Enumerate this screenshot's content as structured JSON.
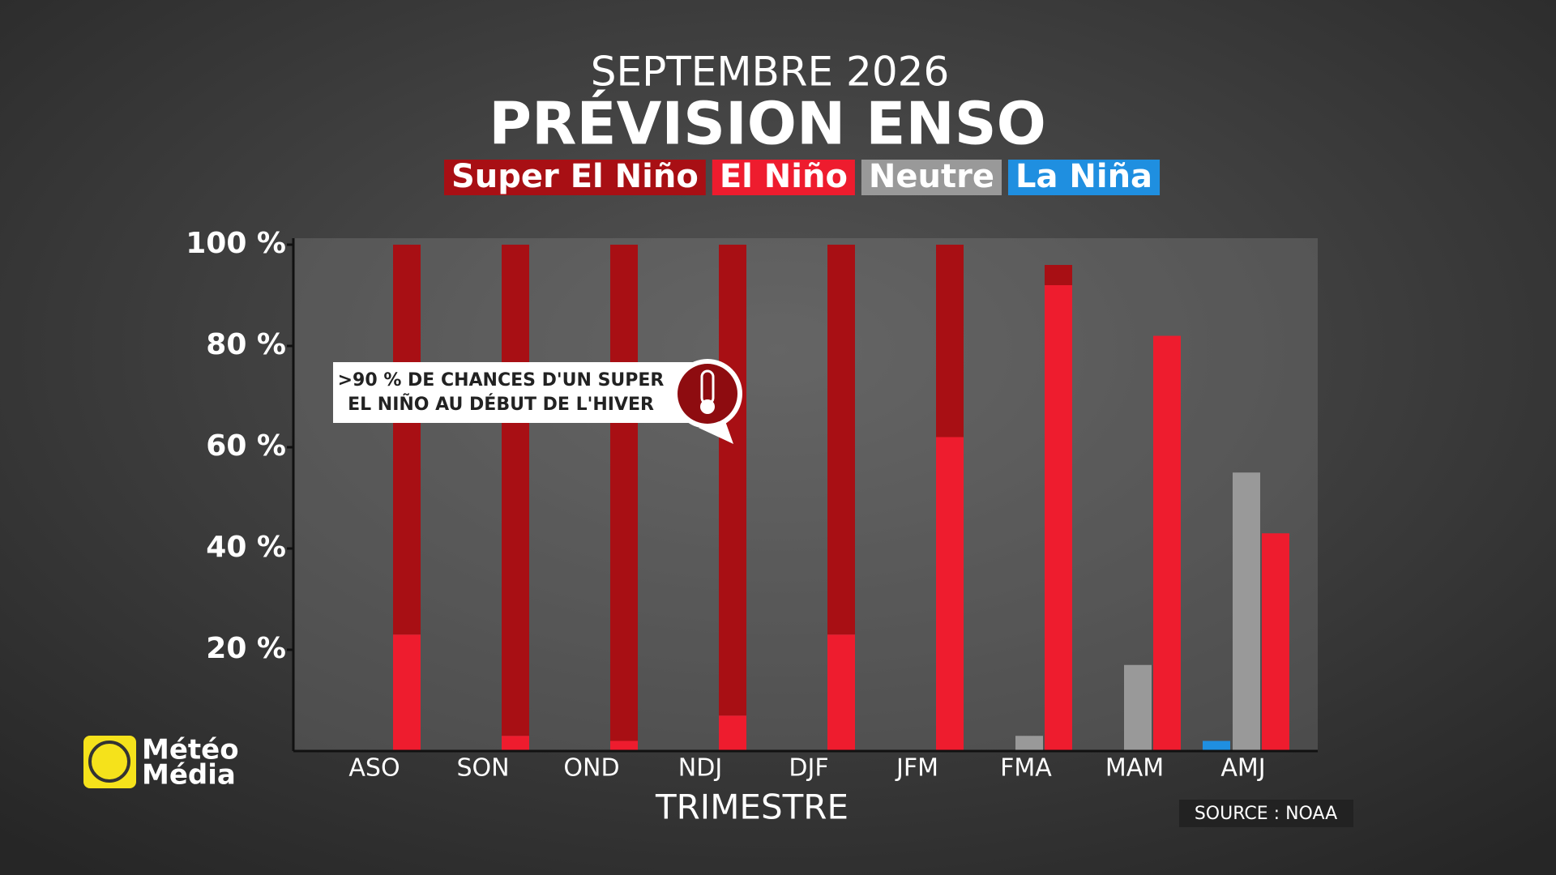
{
  "chart_data": {
    "type": "bar",
    "subtitle": "SEPTEMBRE 2026",
    "title": "PRÉVISION ENSO",
    "categories": [
      "ASO",
      "SON",
      "OND",
      "NDJ",
      "DJF",
      "JFM",
      "FMA",
      "MAM",
      "AMJ"
    ],
    "series": [
      {
        "name": "Super El Niño",
        "color": "#a80f14",
        "values": [
          77,
          97,
          98,
          93,
          77,
          38,
          4,
          null,
          null
        ]
      },
      {
        "name": "El Niño",
        "color": "#ee1c2e",
        "values": [
          23,
          3,
          2,
          7,
          23,
          62,
          92,
          82,
          43
        ]
      },
      {
        "name": "Neutre",
        "color": "#999999",
        "values": [
          null,
          null,
          null,
          null,
          null,
          null,
          3,
          17,
          55
        ]
      },
      {
        "name": "La Niña",
        "color": "#1f8fe0",
        "values": [
          null,
          null,
          null,
          null,
          null,
          null,
          null,
          null,
          2
        ]
      }
    ],
    "ylim": [
      0,
      100
    ],
    "yticks": [
      {
        "value": 20,
        "label": "20 %"
      },
      {
        "value": 40,
        "label": "40 %"
      },
      {
        "value": 60,
        "label": "60 %"
      },
      {
        "value": 80,
        "label": "80 %"
      },
      {
        "value": 100,
        "label": "100 %"
      }
    ],
    "xlabel": "TRIMESTRE",
    "annotation": [
      ">90 % DE CHANCES D'UN SUPER",
      "EL NIÑO AU DÉBUT DE L'HIVER"
    ],
    "source": "SOURCE : NOAA"
  },
  "logo": [
    "Météo",
    "Média"
  ]
}
